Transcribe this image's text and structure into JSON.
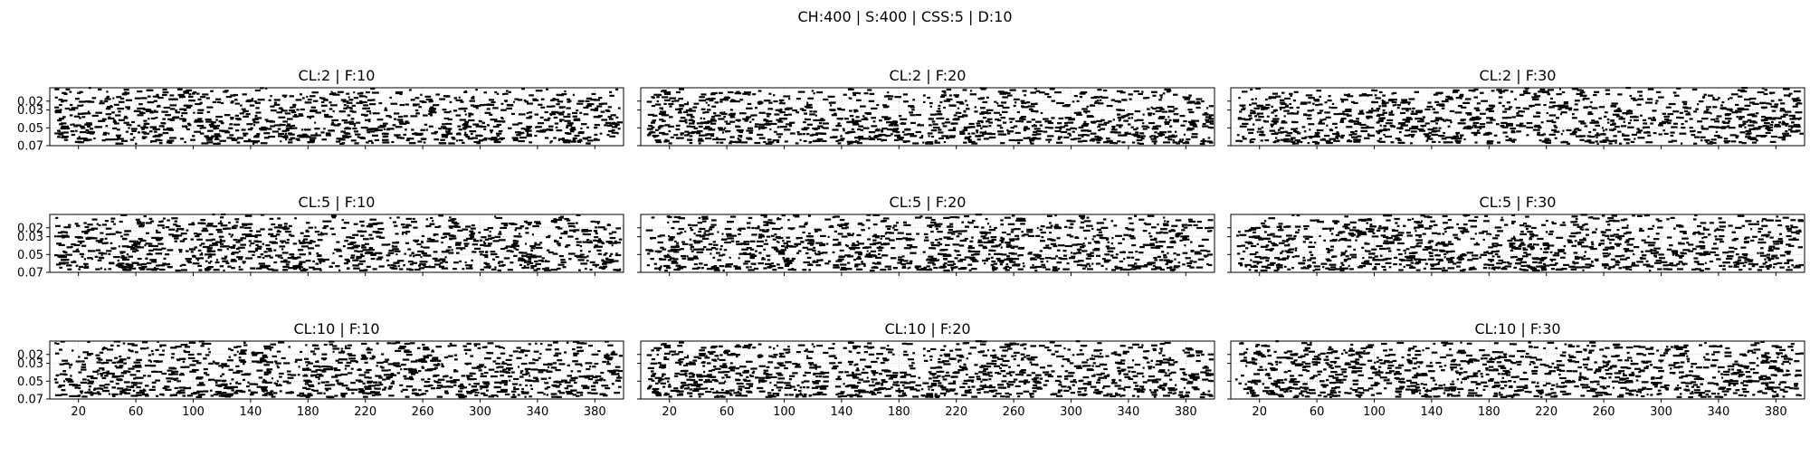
{
  "figure": {
    "suptitle": "CH:400 | S:400 | CSS:5 | D:10"
  },
  "colors": {
    "mark": "#000000",
    "grid": "#b0b0b0",
    "axis": "#000000",
    "background": "#ffffff"
  },
  "chart_data": [
    {
      "type": "scatter",
      "title": "CL:2 | F:10",
      "xlim": [
        0,
        400
      ],
      "ylim": [
        0.07,
        0.005
      ],
      "xticks": [
        20,
        60,
        100,
        140,
        180,
        220,
        260,
        300,
        340,
        380
      ],
      "yticks": [
        0.02,
        0.03,
        0.05,
        0.07
      ],
      "grid": true,
      "seed": 11,
      "note_marks": "dense random horizontal dashes across full x-range"
    },
    {
      "type": "scatter",
      "title": "CL:2 | F:20",
      "xlim": [
        0,
        400
      ],
      "ylim": [
        0.07,
        0.005
      ],
      "xticks": [
        20,
        60,
        100,
        140,
        180,
        220,
        260,
        300,
        340,
        380
      ],
      "yticks": [
        0.02,
        0.03,
        0.05,
        0.07
      ],
      "grid": true,
      "seed": 12
    },
    {
      "type": "scatter",
      "title": "CL:2 | F:30",
      "xlim": [
        0,
        400
      ],
      "ylim": [
        0.07,
        0.005
      ],
      "xticks": [
        20,
        60,
        100,
        140,
        180,
        220,
        260,
        300,
        340,
        380
      ],
      "yticks": [
        0.02,
        0.03,
        0.05,
        0.07
      ],
      "grid": true,
      "seed": 13
    },
    {
      "type": "scatter",
      "title": "CL:5 | F:10",
      "xlim": [
        0,
        400
      ],
      "ylim": [
        0.07,
        0.005
      ],
      "xticks": [
        20,
        60,
        100,
        140,
        180,
        220,
        260,
        300,
        340,
        380
      ],
      "yticks": [
        0.02,
        0.03,
        0.05,
        0.07
      ],
      "grid": true,
      "seed": 21
    },
    {
      "type": "scatter",
      "title": "CL:5 | F:20",
      "xlim": [
        0,
        400
      ],
      "ylim": [
        0.07,
        0.005
      ],
      "xticks": [
        20,
        60,
        100,
        140,
        180,
        220,
        260,
        300,
        340,
        380
      ],
      "yticks": [
        0.02,
        0.03,
        0.05,
        0.07
      ],
      "grid": true,
      "seed": 22
    },
    {
      "type": "scatter",
      "title": "CL:5 | F:30",
      "xlim": [
        0,
        400
      ],
      "ylim": [
        0.07,
        0.005
      ],
      "xticks": [
        20,
        60,
        100,
        140,
        180,
        220,
        260,
        300,
        340,
        380
      ],
      "yticks": [
        0.02,
        0.03,
        0.05,
        0.07
      ],
      "grid": true,
      "seed": 23
    },
    {
      "type": "scatter",
      "title": "CL:10 | F:10",
      "xlim": [
        0,
        400
      ],
      "ylim": [
        0.07,
        0.005
      ],
      "xticks": [
        20,
        60,
        100,
        140,
        180,
        220,
        260,
        300,
        340,
        380
      ],
      "yticks": [
        0.02,
        0.03,
        0.05,
        0.07
      ],
      "grid": true,
      "seed": 31
    },
    {
      "type": "scatter",
      "title": "CL:10 | F:20",
      "xlim": [
        0,
        400
      ],
      "ylim": [
        0.07,
        0.005
      ],
      "xticks": [
        20,
        60,
        100,
        140,
        180,
        220,
        260,
        300,
        340,
        380
      ],
      "yticks": [
        0.02,
        0.03,
        0.05,
        0.07
      ],
      "grid": true,
      "seed": 32
    },
    {
      "type": "scatter",
      "title": "CL:10 | F:30",
      "xlim": [
        0,
        400
      ],
      "ylim": [
        0.07,
        0.005
      ],
      "xticks": [
        20,
        60,
        100,
        140,
        180,
        220,
        260,
        300,
        340,
        380
      ],
      "yticks": [
        0.02,
        0.03,
        0.05,
        0.07
      ],
      "grid": true,
      "seed": 33
    }
  ]
}
